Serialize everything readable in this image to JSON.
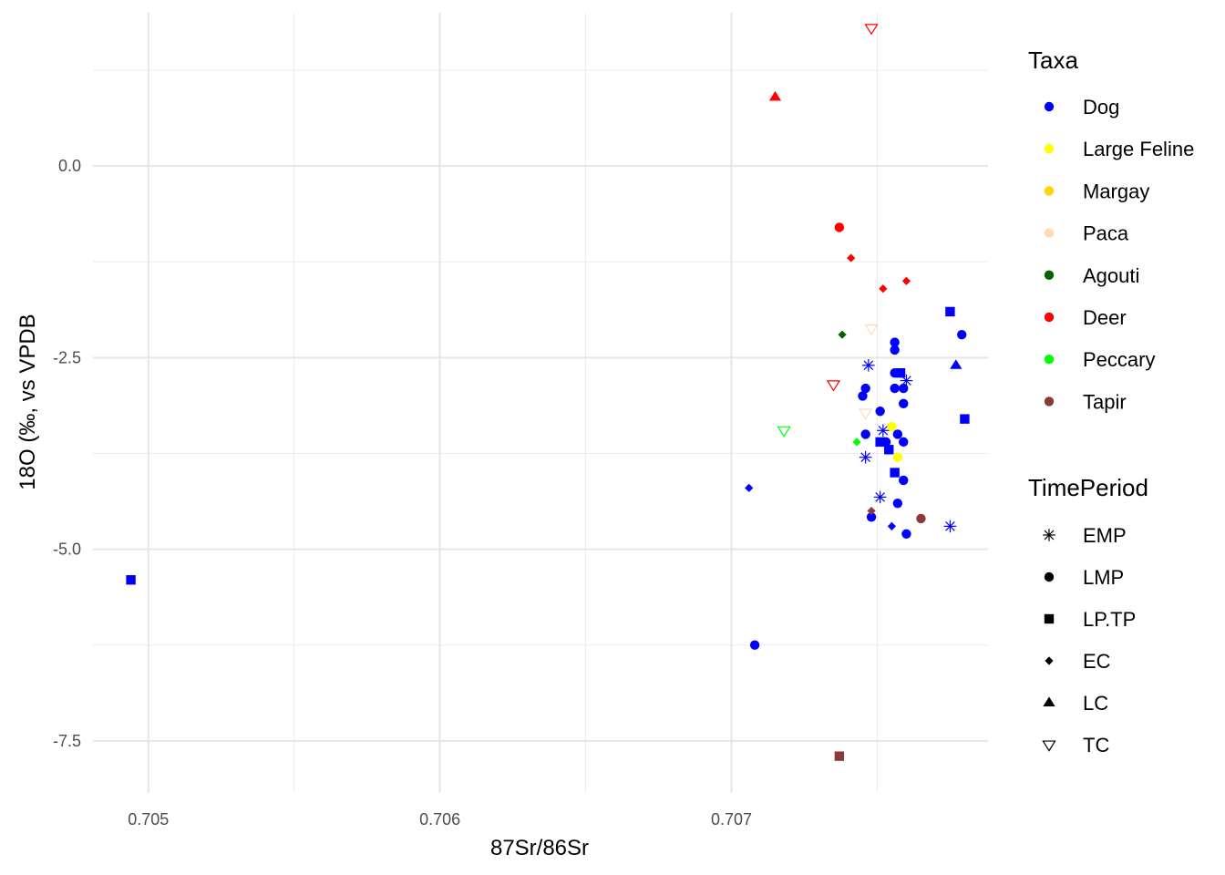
{
  "chart_data": {
    "type": "scatter",
    "xlabel": "87Sr/86Sr",
    "ylabel": "18O (‰, vs VPDB",
    "xlim": [
      0.70481,
      0.70788
    ],
    "ylim": [
      -8.18,
      2.0
    ],
    "x_ticks": [
      {
        "value": 0.705,
        "label": "0.705"
      },
      {
        "value": 0.706,
        "label": "0.706"
      },
      {
        "value": 0.707,
        "label": "0.707"
      }
    ],
    "x_minor_ticks": [
      0.7055,
      0.7065,
      0.7075
    ],
    "y_ticks": [
      {
        "value": 0.0,
        "label": "0.0"
      },
      {
        "value": -2.5,
        "label": "-2.5"
      },
      {
        "value": -5.0,
        "label": "-5.0"
      },
      {
        "value": -7.5,
        "label": "-7.5"
      }
    ],
    "y_minor_ticks": [
      1.25,
      -1.25,
      -3.75,
      -6.25
    ],
    "grid": true,
    "legend_position": "right",
    "legends": {
      "color": {
        "title": "Taxa",
        "items": [
          {
            "label": "Dog",
            "color": "#0000ff"
          },
          {
            "label": "Large Feline",
            "color": "#ffff00"
          },
          {
            "label": "Margay",
            "color": "#ffd700"
          },
          {
            "label": "Paca",
            "color": "#ffdab9"
          },
          {
            "label": "Agouti",
            "color": "#006400"
          },
          {
            "label": "Deer",
            "color": "#ff0000"
          },
          {
            "label": "Peccary",
            "color": "#00ff00"
          },
          {
            "label": "Tapir",
            "color": "#8b3a3a"
          }
        ]
      },
      "shape": {
        "title": "TimePeriod",
        "items": [
          {
            "label": "EMP",
            "shape": "asterisk"
          },
          {
            "label": "LMP",
            "shape": "circle"
          },
          {
            "label": "LP.TP",
            "shape": "square"
          },
          {
            "label": "EC",
            "shape": "diamond"
          },
          {
            "label": "LC",
            "shape": "triangle"
          },
          {
            "label": "TC",
            "shape": "triangle-open-down"
          }
        ]
      }
    },
    "points": [
      {
        "x": 0.70494,
        "y": -5.4,
        "taxon": "Dog",
        "period": "LP.TP"
      },
      {
        "x": 0.70708,
        "y": -6.25,
        "taxon": "Dog",
        "period": "LMP"
      },
      {
        "x": 0.70706,
        "y": -4.2,
        "taxon": "Dog",
        "period": "EC"
      },
      {
        "x": 0.70748,
        "y": -4.58,
        "taxon": "Dog",
        "period": "LMP"
      },
      {
        "x": 0.70755,
        "y": -4.7,
        "taxon": "Dog",
        "period": "EC"
      },
      {
        "x": 0.7076,
        "y": -4.8,
        "taxon": "Dog",
        "period": "LMP"
      },
      {
        "x": 0.70757,
        "y": -4.4,
        "taxon": "Dog",
        "period": "LMP"
      },
      {
        "x": 0.70759,
        "y": -4.1,
        "taxon": "Dog",
        "period": "LMP"
      },
      {
        "x": 0.70751,
        "y": -4.32,
        "taxon": "Dog",
        "period": "EMP"
      },
      {
        "x": 0.70746,
        "y": -3.8,
        "taxon": "Dog",
        "period": "EMP"
      },
      {
        "x": 0.70756,
        "y": -4.0,
        "taxon": "Dog",
        "period": "LP.TP"
      },
      {
        "x": 0.70746,
        "y": -3.5,
        "taxon": "Dog",
        "period": "LMP"
      },
      {
        "x": 0.70751,
        "y": -3.6,
        "taxon": "Dog",
        "period": "LP.TP"
      },
      {
        "x": 0.70753,
        "y": -3.6,
        "taxon": "Dog",
        "period": "LMP"
      },
      {
        "x": 0.70754,
        "y": -3.7,
        "taxon": "Dog",
        "period": "LP.TP"
      },
      {
        "x": 0.70757,
        "y": -3.5,
        "taxon": "Dog",
        "period": "LMP"
      },
      {
        "x": 0.70759,
        "y": -3.6,
        "taxon": "Dog",
        "period": "LMP"
      },
      {
        "x": 0.70752,
        "y": -3.45,
        "taxon": "Dog",
        "period": "EMP"
      },
      {
        "x": 0.70751,
        "y": -3.2,
        "taxon": "Dog",
        "period": "LMP"
      },
      {
        "x": 0.70745,
        "y": -3.0,
        "taxon": "Dog",
        "period": "LMP"
      },
      {
        "x": 0.70746,
        "y": -2.9,
        "taxon": "Dog",
        "period": "LMP"
      },
      {
        "x": 0.70756,
        "y": -2.9,
        "taxon": "Dog",
        "period": "LMP"
      },
      {
        "x": 0.70759,
        "y": -2.9,
        "taxon": "Dog",
        "period": "LMP"
      },
      {
        "x": 0.70759,
        "y": -3.1,
        "taxon": "Dog",
        "period": "LMP"
      },
      {
        "x": 0.70756,
        "y": -2.7,
        "taxon": "Dog",
        "period": "LMP"
      },
      {
        "x": 0.70758,
        "y": -2.7,
        "taxon": "Dog",
        "period": "LP.TP"
      },
      {
        "x": 0.70747,
        "y": -2.6,
        "taxon": "Dog",
        "period": "EMP"
      },
      {
        "x": 0.7076,
        "y": -2.8,
        "taxon": "Dog",
        "period": "EMP"
      },
      {
        "x": 0.70756,
        "y": -2.4,
        "taxon": "Dog",
        "period": "LMP"
      },
      {
        "x": 0.70756,
        "y": -2.3,
        "taxon": "Dog",
        "period": "LMP"
      },
      {
        "x": 0.70775,
        "y": -1.9,
        "taxon": "Dog",
        "period": "LP.TP"
      },
      {
        "x": 0.70779,
        "y": -2.2,
        "taxon": "Dog",
        "period": "LMP"
      },
      {
        "x": 0.70777,
        "y": -2.6,
        "taxon": "Dog",
        "period": "LC"
      },
      {
        "x": 0.7078,
        "y": -3.3,
        "taxon": "Dog",
        "period": "LP.TP"
      },
      {
        "x": 0.70775,
        "y": -4.7,
        "taxon": "Dog",
        "period": "EMP"
      },
      {
        "x": 0.70755,
        "y": -3.4,
        "taxon": "Large Feline",
        "period": "LMP"
      },
      {
        "x": 0.70757,
        "y": -3.8,
        "taxon": "Large Feline",
        "period": "LMP"
      },
      {
        "x": 0.70738,
        "y": -2.2,
        "taxon": "Agouti",
        "period": "EC"
      },
      {
        "x": 0.70743,
        "y": -3.6,
        "taxon": "Peccary",
        "period": "EC"
      },
      {
        "x": 0.70718,
        "y": -3.45,
        "taxon": "Peccary",
        "period": "TC"
      },
      {
        "x": 0.70737,
        "y": -0.8,
        "taxon": "Deer",
        "period": "LMP"
      },
      {
        "x": 0.70741,
        "y": -1.2,
        "taxon": "Deer",
        "period": "EC"
      },
      {
        "x": 0.70752,
        "y": -1.6,
        "taxon": "Deer",
        "period": "EC"
      },
      {
        "x": 0.7076,
        "y": -1.5,
        "taxon": "Deer",
        "period": "EC"
      },
      {
        "x": 0.70715,
        "y": 0.9,
        "taxon": "Deer",
        "period": "LC"
      },
      {
        "x": 0.70748,
        "y": 1.8,
        "taxon": "Deer",
        "period": "TC"
      },
      {
        "x": 0.70735,
        "y": -2.85,
        "taxon": "Deer",
        "period": "TC"
      },
      {
        "x": 0.70748,
        "y": -2.12,
        "taxon": "Paca",
        "period": "TC"
      },
      {
        "x": 0.70746,
        "y": -3.22,
        "taxon": "Paca",
        "period": "TC"
      },
      {
        "x": 0.70737,
        "y": -7.7,
        "taxon": "Tapir",
        "period": "LP.TP"
      },
      {
        "x": 0.70748,
        "y": -4.5,
        "taxon": "Tapir",
        "period": "EC"
      },
      {
        "x": 0.70765,
        "y": -4.6,
        "taxon": "Tapir",
        "period": "LMP"
      }
    ]
  }
}
